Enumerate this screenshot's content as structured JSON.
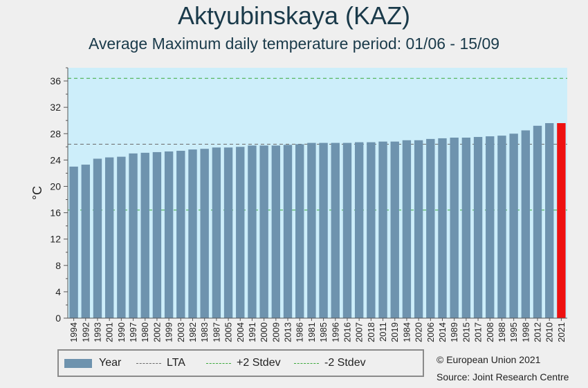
{
  "title": "Aktyubinskaya (KAZ)",
  "subtitle": "Average Maximum daily temperature period: 01/06 - 15/09",
  "colors": {
    "background": "#efefef",
    "plot_area": "#cdeefa",
    "bar": "#6e93ae",
    "highlight_bar": "#ee1111",
    "lta_line": "#6a6a6a",
    "stdev_line": "#3aa83a"
  },
  "legend": {
    "year": "Year",
    "lta": "LTA",
    "plus2": "+2 Stdev",
    "minus2": "-2 Stdev"
  },
  "credits": {
    "copyright": "© European Union 2021",
    "source": "Source: Joint Research Centre"
  },
  "chart_data": {
    "type": "bar",
    "title": "Aktyubinskaya (KAZ)",
    "subtitle": "Average Maximum daily temperature period: 01/06 - 15/09",
    "xlabel": "",
    "ylabel": "°C",
    "ylim": [
      0,
      38
    ],
    "yticks": [
      0,
      4,
      8,
      12,
      16,
      20,
      24,
      28,
      32,
      36
    ],
    "grid": false,
    "legend_position": "bottom",
    "highlight": "2021",
    "categories": [
      "1994",
      "1992",
      "1993",
      "2001",
      "1990",
      "1997",
      "1980",
      "2002",
      "1999",
      "2003",
      "1982",
      "1983",
      "1987",
      "2005",
      "2004",
      "1991",
      "2000",
      "2009",
      "2013",
      "1986",
      "1981",
      "1985",
      "1996",
      "2016",
      "2007",
      "2018",
      "2011",
      "2019",
      "1984",
      "2020",
      "2006",
      "2014",
      "1989",
      "2015",
      "2017",
      "2008",
      "1988",
      "1995",
      "1998",
      "2012",
      "2010",
      "2021"
    ],
    "values": [
      23.0,
      23.3,
      24.2,
      24.4,
      24.5,
      25.0,
      25.1,
      25.2,
      25.3,
      25.4,
      25.6,
      25.7,
      25.9,
      25.9,
      26.0,
      26.2,
      26.2,
      26.2,
      26.3,
      26.4,
      26.6,
      26.6,
      26.6,
      26.6,
      26.7,
      26.7,
      26.8,
      26.8,
      27.0,
      27.0,
      27.2,
      27.3,
      27.4,
      27.4,
      27.5,
      27.6,
      27.7,
      28.0,
      28.5,
      29.2,
      29.6,
      29.6
    ],
    "reference_lines": [
      {
        "name": "LTA",
        "value": 26.4
      },
      {
        "name": "+2 Stdev",
        "value": 36.4
      },
      {
        "name": "-2 Stdev",
        "value": 16.4
      }
    ]
  }
}
